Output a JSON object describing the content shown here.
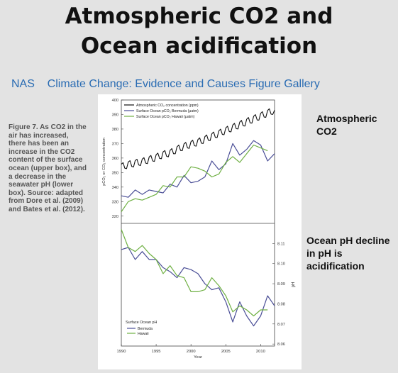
{
  "slide": {
    "title_line1": "Atmospheric CO2 and",
    "title_line2": "Ocean acidification",
    "subtitle": "NAS    Climate Change: Evidence and Causes Figure Gallery",
    "caption": "Figure 7. As CO2 in the air has increased, there has been an increase in the CO2 content of the surface ocean (upper box), and a decrease in the seawater pH (lower box). Source: adapted from Dore et al. (2009) and Bates et al. (2012).",
    "side_label_top": "Atmospheric CO2",
    "side_label_bottom": "Ocean pH decline in pH  is acidification"
  },
  "colors": {
    "atmospheric": "#111111",
    "bermuda": "#4a4e96",
    "hawaii": "#6fb043"
  },
  "chart_data": [
    {
      "type": "line",
      "panel": "top",
      "ylabel": "pCO₂ or CO₂ concentration",
      "ylim": [
        315,
        400
      ],
      "yticks": [
        320,
        330,
        340,
        350,
        360,
        370,
        380,
        390,
        400
      ],
      "xlim": [
        1990,
        2012
      ],
      "legend_placement": "top-left",
      "series": [
        {
          "name": "Atmospheric CO₂ concentration (ppm)",
          "color_key": "atmospheric",
          "seasonal_amplitude": 3,
          "x": [
            1990,
            1991,
            1992,
            1993,
            1994,
            1995,
            1996,
            1997,
            1998,
            1999,
            2000,
            2001,
            2002,
            2003,
            2004,
            2005,
            2006,
            2007,
            2008,
            2009,
            2010,
            2011,
            2012
          ],
          "y": [
            354,
            355.5,
            356.5,
            357.5,
            359,
            360.5,
            362.5,
            363.5,
            366,
            368,
            369.5,
            371,
            373,
            375,
            377,
            379,
            381,
            383,
            385,
            387,
            389,
            391,
            393
          ]
        },
        {
          "name": "Surface Ocean pCO₂ Bermuda (μatm)",
          "color_key": "bermuda",
          "x": [
            1990,
            1991,
            1992,
            1993,
            1994,
            1995,
            1996,
            1997,
            1998,
            1999,
            2000,
            2001,
            2002,
            2003,
            2004,
            2005,
            2006,
            2007,
            2008,
            2009,
            2010,
            2011,
            2012
          ],
          "y": [
            334,
            333,
            338,
            335,
            338,
            337,
            336,
            342,
            340,
            348,
            343,
            344,
            347,
            358,
            352,
            356,
            370,
            362,
            366,
            372,
            369,
            358,
            363
          ]
        },
        {
          "name": "Surface Ocean pCO₂ Hawaii (μatm)",
          "color_key": "hawaii",
          "x": [
            1990,
            1991,
            1992,
            1993,
            1994,
            1995,
            1996,
            1997,
            1998,
            1999,
            2000,
            2001,
            2002,
            2003,
            2004,
            2005,
            2006,
            2007,
            2008,
            2009,
            2010,
            2011
          ],
          "y": [
            323,
            330,
            332,
            331,
            333,
            335,
            341,
            340,
            347,
            347,
            354,
            353,
            351,
            347,
            349,
            357,
            361,
            357,
            363,
            369,
            367,
            365
          ]
        }
      ]
    },
    {
      "type": "line",
      "panel": "bottom",
      "ylabel": "pH",
      "xlabel": "Year",
      "ylim": [
        8.059,
        8.12
      ],
      "yticks": [
        8.06,
        8.07,
        8.08,
        8.09,
        8.1,
        8.11
      ],
      "xlim": [
        1990,
        2012
      ],
      "xticks": [
        1990,
        1995,
        2000,
        2005,
        2010
      ],
      "legend_title": "Surface Ocean pH",
      "legend_placement": "bottom-left",
      "series": [
        {
          "name": "Bermuda",
          "color_key": "bermuda",
          "x": [
            1990,
            1991,
            1992,
            1993,
            1994,
            1995,
            1996,
            1997,
            1998,
            1999,
            2000,
            2001,
            2002,
            2003,
            2004,
            2005,
            2006,
            2007,
            2008,
            2009,
            2010,
            2011,
            2012
          ],
          "y": [
            8.107,
            8.108,
            8.102,
            8.106,
            8.102,
            8.102,
            8.098,
            8.096,
            8.093,
            8.098,
            8.097,
            8.095,
            8.09,
            8.087,
            8.088,
            8.081,
            8.071,
            8.081,
            8.074,
            8.069,
            8.074,
            8.084,
            8.079
          ]
        },
        {
          "name": "Hawaii",
          "color_key": "hawaii",
          "x": [
            1990,
            1991,
            1992,
            1993,
            1994,
            1995,
            1996,
            1997,
            1998,
            1999,
            2000,
            2001,
            2002,
            2003,
            2004,
            2005,
            2006,
            2007,
            2008,
            2009,
            2010,
            2011
          ],
          "y": [
            8.117,
            8.108,
            8.106,
            8.109,
            8.105,
            8.102,
            8.095,
            8.099,
            8.094,
            8.093,
            8.086,
            8.086,
            8.087,
            8.093,
            8.089,
            8.084,
            8.076,
            8.079,
            8.077,
            8.074,
            8.077,
            8.077
          ]
        }
      ]
    }
  ]
}
